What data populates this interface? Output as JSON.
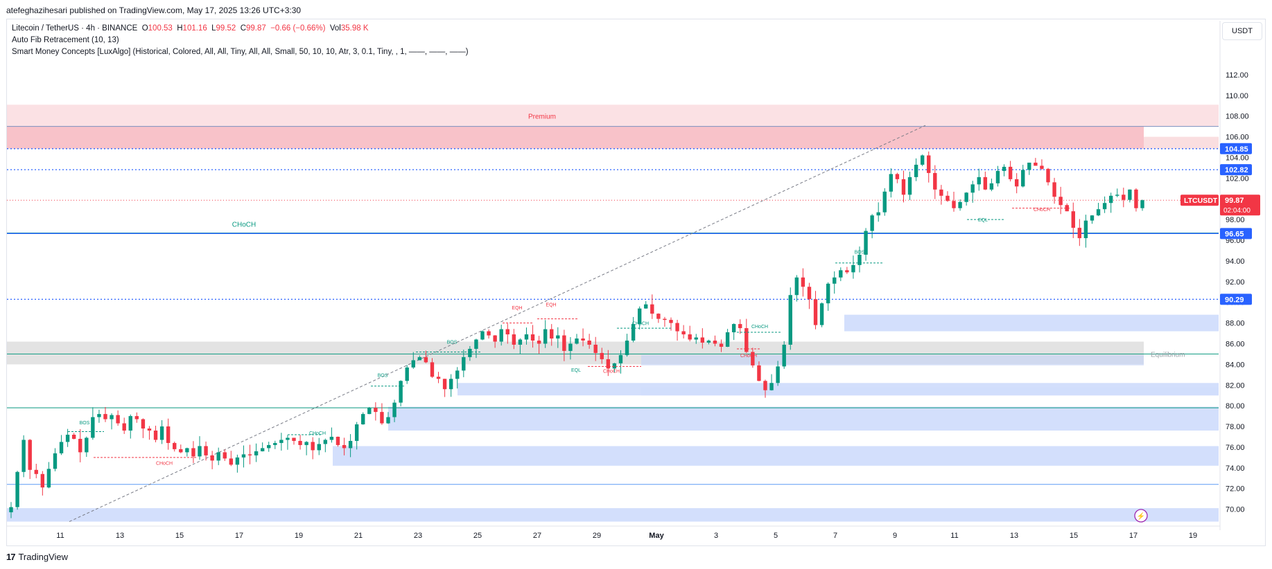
{
  "header": {
    "publisher": "atefeghazihesari published on TradingView.com, May 17, 2025 13:26 UTC+3:30"
  },
  "legend": {
    "symbol": "Litecoin / TetherUS · 4h · BINANCE",
    "o_label": "O",
    "o_value": "100.53",
    "h_label": "H",
    "h_value": "101.16",
    "l_label": "L",
    "l_value": "99.52",
    "c_label": "C",
    "c_value": "99.87",
    "change": "−0.66 (−0.66%)",
    "vol_label": "Vol",
    "vol_value": "35.98 K",
    "indicator1": "Auto Fib Retracement (10, 13)",
    "indicator2": "Smart Money Concepts [LuxAlgo] (Historical, Colored, All, All, Tiny, All, All, Small, 50, 10, 10, Atr, 3, 0.1, Tiny, , 1, ——, ——, ——)"
  },
  "currency_button": "USDT",
  "footer": {
    "brand": "TradingView"
  },
  "colors": {
    "up": "#089981",
    "down": "#f23645",
    "blue": "#2962ff",
    "zone_blue": "#d1ddfc",
    "premium": "#fadadd",
    "premium_dark": "#f7b7bf",
    "equilibrium": "#e0e0e0"
  },
  "chart_data": {
    "type": "candlestick",
    "symbol": "LTCUSDT",
    "interval": "4h",
    "ylim": [
      68.5,
      113
    ],
    "y_ticks": [
      "112.00",
      "110.00",
      "108.00",
      "106.00",
      "104.00",
      "102.00",
      "100.00",
      "98.00",
      "96.00",
      "94.00",
      "92.00",
      "90.00",
      "88.00",
      "86.00",
      "84.00",
      "82.00",
      "80.00",
      "78.00",
      "76.00",
      "74.00",
      "72.00",
      "70.00"
    ],
    "x_ticks": [
      {
        "label": "11",
        "day": 11
      },
      {
        "label": "13",
        "day": 13
      },
      {
        "label": "15",
        "day": 15
      },
      {
        "label": "17",
        "day": 17
      },
      {
        "label": "19",
        "day": 19
      },
      {
        "label": "21",
        "day": 21
      },
      {
        "label": "23",
        "day": 23
      },
      {
        "label": "25",
        "day": 25
      },
      {
        "label": "27",
        "day": 27
      },
      {
        "label": "29",
        "day": 29
      },
      {
        "label": "May",
        "day": 31
      },
      {
        "label": "3",
        "day": 33
      },
      {
        "label": "5",
        "day": 35
      },
      {
        "label": "7",
        "day": 37
      },
      {
        "label": "9",
        "day": 39
      },
      {
        "label": "11",
        "day": 41
      },
      {
        "label": "13",
        "day": 43
      },
      {
        "label": "15",
        "day": 45
      },
      {
        "label": "17",
        "day": 47
      },
      {
        "label": "19",
        "day": 49
      }
    ],
    "close_series": [
      70.2,
      73.6,
      76.7,
      73.8,
      73.4,
      72.1,
      73.9,
      75.4,
      76.5,
      77.2,
      76.8,
      75.5,
      76.9,
      78.9,
      79.2,
      78.7,
      79.1,
      78.3,
      77.6,
      79.0,
      78.7,
      77.8,
      77.6,
      76.7,
      78.0,
      76.4,
      75.8,
      75.5,
      75.9,
      75.1,
      76.1,
      75.2,
      74.7,
      75.5,
      74.9,
      74.3,
      75.0,
      75.3,
      75.2,
      75.6,
      75.9,
      76.2,
      76.4,
      76.7,
      76.9,
      76.6,
      76.2,
      76.5,
      75.7,
      76.3,
      76.7,
      77.0,
      76.2,
      75.9,
      76.6,
      78.2,
      79.2,
      79.8,
      79.4,
      78.3,
      78.9,
      80.3,
      82.4,
      83.7,
      84.4,
      84.7,
      84.2,
      82.8,
      82.6,
      81.6,
      82.6,
      83.4,
      84.7,
      85.5,
      86.4,
      87.2,
      86.8,
      86.2,
      87.4,
      86.9,
      85.9,
      86.4,
      86.9,
      86.3,
      86.0,
      87.4,
      86.5,
      86.8,
      85.3,
      86.0,
      86.5,
      86.3,
      85.9,
      85.1,
      84.5,
      83.6,
      84.1,
      84.9,
      86.3,
      87.9,
      89.4,
      89.8,
      88.9,
      88.4,
      88.3,
      88.0,
      87.2,
      86.9,
      86.4,
      86.6,
      86.1,
      86.3,
      86.0,
      85.7,
      87.1,
      87.9,
      87.5,
      85.2,
      83.9,
      82.4,
      81.5,
      82.2,
      83.8,
      85.9,
      90.7,
      92.4,
      91.5,
      90.3,
      87.8,
      89.9,
      91.8,
      92.4,
      93.1,
      92.9,
      93.6,
      94.6,
      96.9,
      98.4,
      98.7,
      100.7,
      102.4,
      101.9,
      100.4,
      102.1,
      103.3,
      104.2,
      102.5,
      100.9,
      100.3,
      99.8,
      99.1,
      99.7,
      100.6,
      101.4,
      102.1,
      100.9,
      101.5,
      102.7,
      103.1,
      101.9,
      101.2,
      102.8,
      103.5,
      103.2,
      102.9,
      101.6,
      100.2,
      99.4,
      98.8,
      97.2,
      96.2,
      97.9,
      98.4,
      99.0,
      99.6,
      100.3,
      100.4,
      99.9,
      100.9,
      99.1,
      99.87
    ],
    "horizontal_levels": [
      {
        "label": "104.85",
        "price": 104.85,
        "color": "#2962ff",
        "style": "dotted"
      },
      {
        "label": "102.82",
        "price": 102.82,
        "color": "#2962ff",
        "style": "dotted"
      },
      {
        "label": "96.65",
        "price": 96.65,
        "color": "#2962ff",
        "style": "solid"
      },
      {
        "label": "90.29",
        "price": 90.29,
        "color": "#2962ff",
        "style": "dotted"
      }
    ],
    "current_price": {
      "symbol": "LTCUSDT",
      "price": "99.87",
      "countdown": "02:04:00"
    },
    "annotations": [
      {
        "text": "Premium"
      },
      {
        "text": "Equilibrium"
      },
      {
        "text": "CHoCH"
      },
      {
        "text": "BOS"
      },
      {
        "text": "EQH"
      },
      {
        "text": "EQL"
      }
    ]
  }
}
